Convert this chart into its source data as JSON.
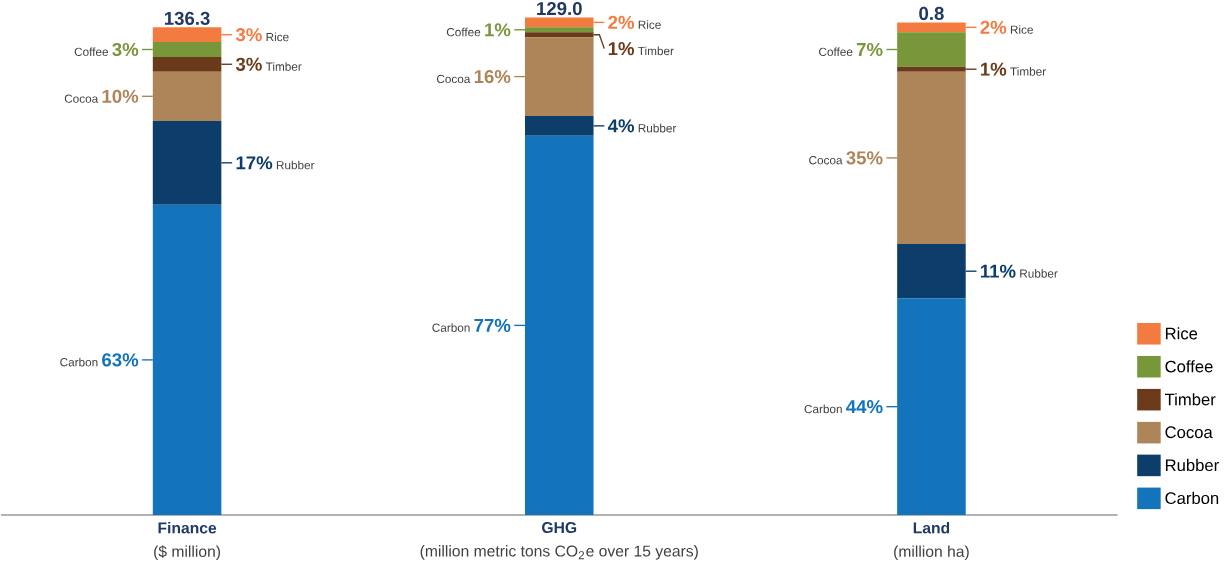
{
  "chart_data": {
    "type": "bar",
    "stacked": true,
    "legend": "right",
    "categories": [
      "Finance",
      "GHG",
      "Land"
    ],
    "annotations": [
      "($ million)",
      "(million metric tons CO$_{2}$e  over 15 years)",
      "(million ha)",
      {
        "text": "136.3",
        "x": "Finance",
        "y": 99
      },
      {
        "text": "129.0",
        "x": "GHG",
        "y": 101
      },
      {
        "text": "0.8",
        "x": "Land",
        "y": 100
      }
    ],
    "series": [
      {
        "name": "Carbon",
        "color": "#1474bb",
        "values": [
          63,
          77,
          44
        ],
        "value_labels": [
          "63%",
          "77%",
          "44%"
        ]
      },
      {
        "name": "Rubber",
        "color": "#0d3e6b",
        "values": [
          17,
          4,
          11
        ],
        "value_labels": [
          "17%",
          "4%",
          "11%"
        ]
      },
      {
        "name": "Cocoa",
        "color": "#ae8559",
        "values": [
          10,
          16,
          35
        ],
        "value_labels": [
          "10%",
          "16%",
          "35%"
        ]
      },
      {
        "name": "Timber",
        "color": "#6b3a1a",
        "values": [
          3,
          1,
          1
        ],
        "value_labels": [
          "3%",
          "1%",
          "1%"
        ]
      },
      {
        "name": "Coffee",
        "color": "#78963a",
        "values": [
          3,
          1,
          7
        ],
        "value_labels": [
          "3%",
          "1%",
          "7%"
        ]
      },
      {
        "name": "Rice",
        "color": "#f47b3f",
        "values": [
          3,
          2,
          2
        ],
        "value_labels": [
          "3%",
          "2%",
          "2%"
        ]
      }
    ]
  }
}
